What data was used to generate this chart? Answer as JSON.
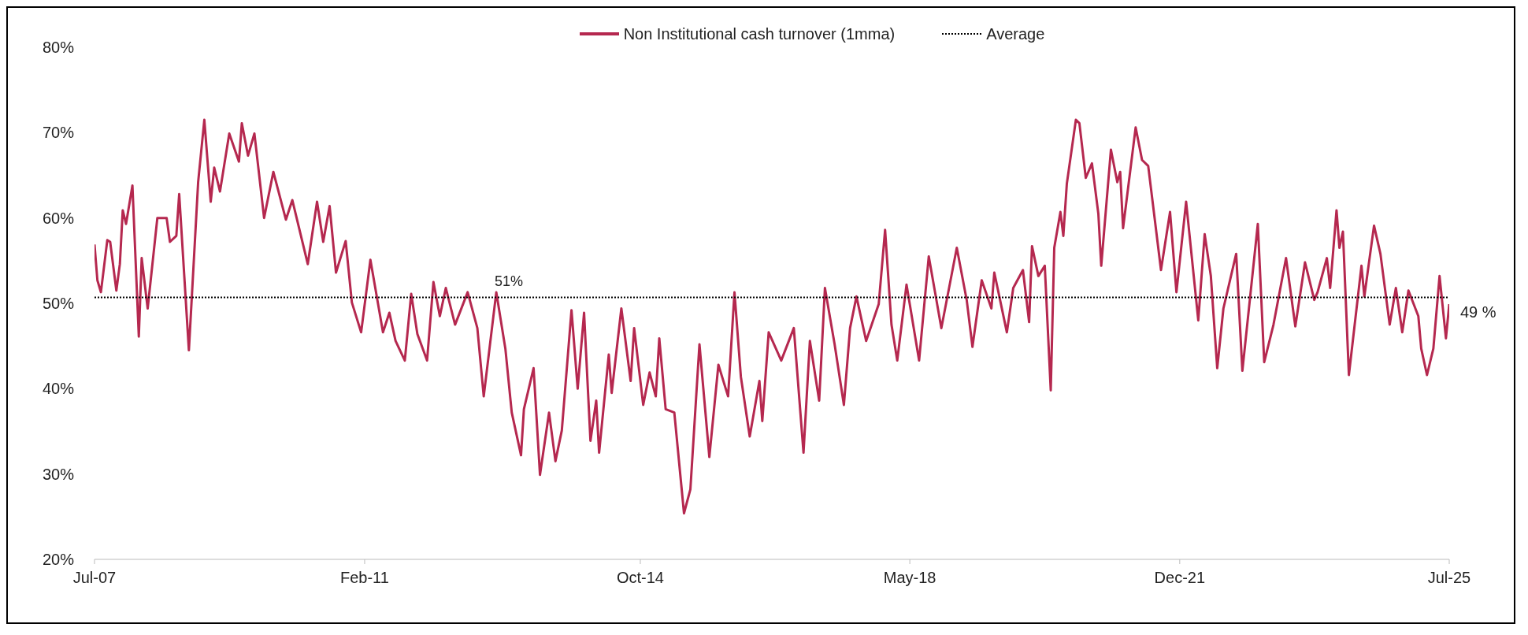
{
  "chart_data": {
    "type": "line",
    "x": [
      "2007-07-01",
      "2007-07-15",
      "2007-08-01",
      "2007-09-01",
      "2007-09-15",
      "2007-10-15",
      "2007-11-01",
      "2007-11-15",
      "2007-12-01",
      "2008-01-01",
      "2008-02-01",
      "2008-02-15",
      "2008-03-15",
      "2008-05-01",
      "2008-06-15",
      "2008-07-01",
      "2008-08-01",
      "2008-08-15",
      "2008-10-01",
      "2008-11-15",
      "2008-12-15",
      "2009-01-15",
      "2009-02-01",
      "2009-03-01",
      "2009-04-15",
      "2009-06-01",
      "2009-06-15",
      "2009-07-15",
      "2009-08-15",
      "2009-10-01",
      "2009-11-15",
      "2010-01-15",
      "2010-02-15",
      "2010-05-01",
      "2010-06-15",
      "2010-07-15",
      "2010-08-15",
      "2010-09-15",
      "2010-11-01",
      "2010-12-01",
      "2011-01-15",
      "2011-03-01",
      "2011-05-01",
      "2011-06-01",
      "2011-07-01",
      "2011-08-15",
      "2011-09-15",
      "2011-10-15",
      "2011-12-01",
      "2012-01-01",
      "2012-02-01",
      "2012-03-01",
      "2012-04-15",
      "2012-06-15",
      "2012-08-01",
      "2012-09-01",
      "2012-11-01",
      "2012-12-15",
      "2013-01-15",
      "2013-03-01",
      "2013-03-15",
      "2013-05-01",
      "2013-06-01",
      "2013-07-15",
      "2013-08-15",
      "2013-09-15",
      "2013-11-01",
      "2013-12-01",
      "2014-01-01",
      "2014-02-01",
      "2014-03-01",
      "2014-03-15",
      "2014-05-01",
      "2014-05-15",
      "2014-07-01",
      "2014-08-15",
      "2014-09-01",
      "2014-10-15",
      "2014-11-15",
      "2014-12-15",
      "2015-01-01",
      "2015-02-01",
      "2015-03-15",
      "2015-05-01",
      "2015-06-01",
      "2015-07-15",
      "2015-09-01",
      "2015-10-15",
      "2015-12-01",
      "2016-01-01",
      "2016-02-01",
      "2016-03-15",
      "2016-05-01",
      "2016-05-15",
      "2016-06-15",
      "2016-08-15",
      "2016-10-15",
      "2016-12-01",
      "2017-01-01",
      "2017-02-15",
      "2017-03-15",
      "2017-05-01",
      "2017-06-15",
      "2017-07-15",
      "2017-08-15",
      "2017-10-01",
      "2017-12-01",
      "2018-01-01",
      "2018-02-01",
      "2018-03-01",
      "2018-04-15",
      "2018-06-15",
      "2018-08-01",
      "2018-10-01",
      "2018-12-15",
      "2019-02-01",
      "2019-03-01",
      "2019-04-15",
      "2019-06-01",
      "2019-06-15",
      "2019-08-15",
      "2019-09-15",
      "2019-11-01",
      "2019-12-01",
      "2019-12-15",
      "2020-01-15",
      "2020-02-15",
      "2020-03-15",
      "2020-04-01",
      "2020-05-01",
      "2020-05-15",
      "2020-06-01",
      "2020-07-15",
      "2020-08-01",
      "2020-09-01",
      "2020-10-01",
      "2020-11-01",
      "2020-11-15",
      "2021-01-01",
      "2021-02-01",
      "2021-02-15",
      "2021-03-01",
      "2021-05-01",
      "2021-06-01",
      "2021-07-01",
      "2021-09-01",
      "2021-10-15",
      "2021-11-15",
      "2022-01-01",
      "2022-03-01",
      "2022-04-01",
      "2022-05-01",
      "2022-06-01",
      "2022-07-01",
      "2022-09-01",
      "2022-10-01",
      "2022-12-15",
      "2023-01-15",
      "2023-03-01",
      "2023-05-01",
      "2023-06-15",
      "2023-08-01",
      "2023-09-15",
      "2023-10-01",
      "2023-11-15",
      "2023-12-01",
      "2024-01-01",
      "2024-01-15",
      "2024-02-01",
      "2024-03-01",
      "2024-05-01",
      "2024-05-15",
      "2024-07-01",
      "2024-08-01",
      "2024-09-15",
      "2024-10-15",
      "2024-11-15",
      "2024-12-15",
      "2025-02-01",
      "2025-02-15",
      "2025-03-15",
      "2025-04-15",
      "2025-05-15",
      "2025-06-15",
      "2025-07-01"
    ],
    "series": [
      {
        "name": "Non Institutional cash turnover (1mma)",
        "color": "#b5284f",
        "values": [
          56.9,
          52.7,
          51.3,
          57.4,
          57.2,
          51.5,
          54.6,
          60.9,
          59.3,
          63.8,
          46.1,
          55.3,
          49.4,
          60.0,
          60.0,
          57.2,
          57.9,
          62.8,
          44.5,
          64.2,
          71.5,
          61.9,
          65.9,
          63.1,
          69.9,
          66.6,
          71.1,
          67.3,
          69.9,
          60.0,
          65.4,
          59.8,
          62.1,
          54.6,
          61.9,
          57.2,
          61.4,
          53.6,
          57.3,
          50.1,
          46.6,
          55.1,
          46.6,
          48.9,
          45.6,
          43.3,
          51.1,
          46.4,
          43.3,
          52.5,
          48.5,
          51.8,
          47.5,
          51.3,
          47.1,
          39.1,
          51.3,
          44.7,
          37.2,
          32.2,
          37.6,
          42.4,
          29.9,
          37.2,
          31.5,
          35.1,
          49.2,
          40.0,
          48.9,
          33.9,
          38.6,
          32.5,
          44.0,
          39.5,
          49.4,
          40.9,
          47.1,
          38.1,
          41.9,
          39.1,
          45.9,
          37.6,
          37.2,
          25.4,
          28.2,
          45.2,
          32.0,
          42.8,
          39.1,
          51.3,
          41.4,
          34.4,
          40.9,
          36.2,
          46.6,
          43.3,
          47.1,
          32.5,
          45.6,
          38.6,
          51.8,
          45.2,
          38.1,
          47.1,
          50.8,
          45.6,
          49.9,
          58.6,
          47.5,
          43.3,
          52.2,
          43.3,
          55.5,
          47.1,
          56.5,
          50.4,
          44.9,
          52.7,
          49.4,
          53.6,
          46.6,
          51.8,
          53.9,
          47.8,
          56.7,
          53.2,
          54.4,
          39.8,
          56.5,
          60.7,
          57.9,
          64.0,
          71.5,
          71.1,
          64.7,
          66.4,
          60.5,
          54.4,
          68.0,
          64.2,
          65.4,
          58.8,
          70.6,
          66.8,
          66.1,
          53.9,
          60.7,
          51.3,
          61.9,
          48.0,
          58.1,
          53.2,
          42.4,
          49.4,
          55.8,
          42.1,
          59.3,
          43.1,
          47.5,
          55.3,
          47.3,
          54.8,
          50.4,
          51.3,
          55.3,
          51.8,
          60.9,
          56.5,
          58.4,
          41.6,
          54.4,
          50.8,
          59.1,
          55.8,
          47.5,
          51.8,
          46.6,
          51.5,
          48.5,
          44.7,
          41.6,
          44.7,
          53.2,
          45.9,
          49.9
        ]
      },
      {
        "name": "Average",
        "type": "line",
        "color": "#000000",
        "line_style": "dotted",
        "x": [
          "2007-07-01",
          "2025-07-01"
        ],
        "values": [
          50.7,
          50.7
        ]
      }
    ],
    "annotations": [
      {
        "text": "51%",
        "x": "2013-01-01",
        "y": 50.7
      },
      {
        "text": "49 %",
        "x": "2025-07-01",
        "y": 49
      }
    ],
    "xlim": [
      "2007-07-01",
      "2025-07-01"
    ],
    "xticks": [
      {
        "value": "2007-07-01",
        "label": "Jul-07"
      },
      {
        "value": "2011-02-01",
        "label": "Feb-11"
      },
      {
        "value": "2014-10-01",
        "label": "Oct-14"
      },
      {
        "value": "2018-05-01",
        "label": "May-18"
      },
      {
        "value": "2021-12-01",
        "label": "Dec-21"
      },
      {
        "value": "2025-07-01",
        "label": "Jul-25"
      }
    ],
    "ylim": [
      20,
      80
    ],
    "yticks": [
      {
        "value": 20,
        "label": "20%"
      },
      {
        "value": 30,
        "label": "30%"
      },
      {
        "value": 40,
        "label": "40%"
      },
      {
        "value": 50,
        "label": "50%"
      },
      {
        "value": 60,
        "label": "60%"
      },
      {
        "value": 70,
        "label": "70%"
      },
      {
        "value": 80,
        "label": "80%"
      }
    ],
    "grid": false,
    "legend": "top",
    "marker": "none",
    "line_style": "solid"
  }
}
